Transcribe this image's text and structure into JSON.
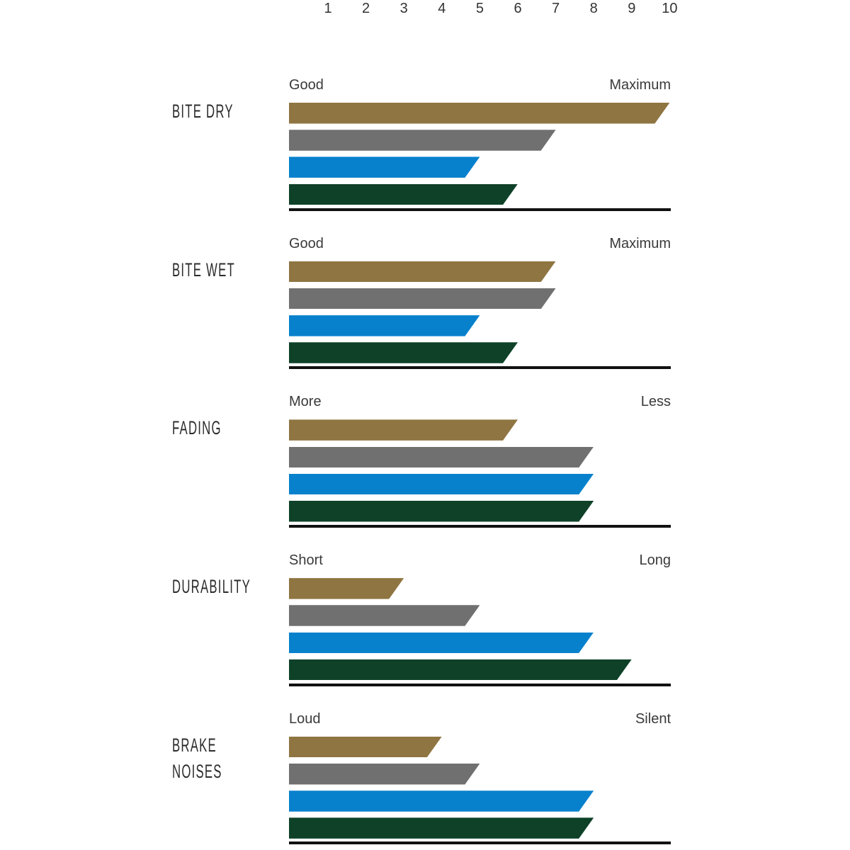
{
  "page": {
    "background": "#ffffff"
  },
  "chart_data": {
    "type": "bar",
    "orientation": "horizontal",
    "title": "",
    "scale_ticks": [
      "1",
      "2",
      "3",
      "4",
      "5",
      "6",
      "7",
      "8",
      "9",
      "10"
    ],
    "xlim": [
      0,
      10
    ],
    "grid": false,
    "legend": "none",
    "text_color": "#333333",
    "baseline_color": "#111111",
    "series": [
      {
        "name": "gold",
        "color": "#8f7541"
      },
      {
        "name": "grey",
        "color": "#707070"
      },
      {
        "name": "blue",
        "color": "#0881cd"
      },
      {
        "name": "green",
        "color": "#0e4128"
      }
    ],
    "groups": [
      {
        "label": "BITE DRY",
        "label_lines": [
          "BITE DRY"
        ],
        "left_label": "Good",
        "right_label": "Maximum",
        "values": [
          10,
          7,
          5,
          6
        ]
      },
      {
        "label": "BITE WET",
        "label_lines": [
          "BITE WET"
        ],
        "left_label": "Good",
        "right_label": "Maximum",
        "values": [
          7,
          7,
          5,
          6
        ]
      },
      {
        "label": "FADING",
        "label_lines": [
          "FADING"
        ],
        "left_label": "More",
        "right_label": "Less",
        "values": [
          6,
          8,
          8,
          8
        ]
      },
      {
        "label": "DURABILITY",
        "label_lines": [
          "DURABILITY"
        ],
        "left_label": "Short",
        "right_label": "Long",
        "values": [
          3,
          5,
          8,
          9
        ]
      },
      {
        "label": "BRAKE NOISES",
        "label_lines": [
          "BRAKE",
          "NOISES"
        ],
        "left_label": "Loud",
        "right_label": "Silent",
        "values": [
          4,
          5,
          8,
          8
        ]
      }
    ]
  }
}
